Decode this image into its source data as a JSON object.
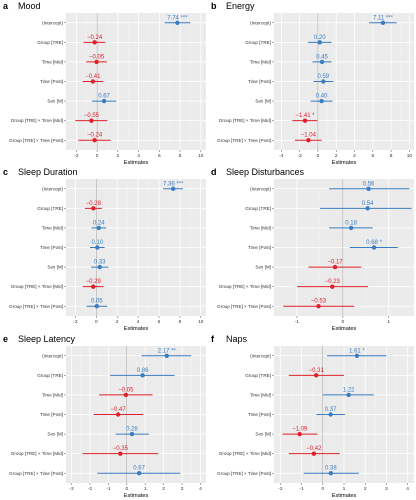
{
  "colors": {
    "positive": "#3a7dc2",
    "negative": "#e0202a",
    "panel_bg": "#ebebeb",
    "grid_major": "#ffffff",
    "grid_minor": "#f5f5f5"
  },
  "chart_data": [
    {
      "type": "scatter",
      "letter": "a",
      "title": "Mood",
      "xlabel": "Estimates",
      "xlim": [
        -3,
        10.5
      ],
      "xticks": [
        -2,
        0,
        2,
        4,
        6,
        8,
        10
      ],
      "categories": [
        "(Intercept)",
        "Group [TRE]",
        "Time [Mid]",
        "Time [Post]",
        "Sex [M]",
        "Group [TRE] × Time [Mid]",
        "Group [TRE] × Time [Post]"
      ],
      "estimates": [
        7.74,
        -0.24,
        -0.05,
        -0.41,
        0.67,
        -0.55,
        -0.24
      ],
      "labels": [
        "7.74 ***",
        "−0.24",
        "−0.05",
        "−0.41",
        "0.67",
        "−0.55",
        "−0.24"
      ],
      "ci_low": [
        6.5,
        -1.3,
        -1.05,
        -1.4,
        -0.5,
        -2.1,
        -1.8
      ],
      "ci_high": [
        9.0,
        0.8,
        0.95,
        0.6,
        1.85,
        1.0,
        1.3
      ]
    },
    {
      "type": "scatter",
      "letter": "b",
      "title": "Energy",
      "xlabel": "Estimates",
      "xlim": [
        -4.8,
        10.5
      ],
      "xticks": [
        -4,
        -2,
        0,
        2,
        4,
        6,
        8,
        10
      ],
      "categories": [
        "(Intercept)",
        "Group [TRE]",
        "Time [Mid]",
        "Time [Post]",
        "Sex [M]",
        "Group [TRE] × Time [Mid]",
        "Group [TRE] × Time [Post]"
      ],
      "estimates": [
        7.11,
        0.2,
        0.45,
        0.59,
        0.4,
        -1.41,
        -1.04
      ],
      "labels": [
        "7.11 ***",
        "0.20",
        "0.45",
        "0.59",
        "0.40",
        "−1.41 *",
        "−1.04"
      ],
      "ci_low": [
        5.6,
        -1.1,
        -0.6,
        -0.5,
        -0.8,
        -2.8,
        -2.5
      ],
      "ci_high": [
        8.6,
        1.5,
        1.5,
        1.7,
        1.6,
        -0.05,
        0.4
      ]
    },
    {
      "type": "scatter",
      "letter": "c",
      "title": "Sleep Duration",
      "xlabel": "Estimates",
      "xlim": [
        -2.9,
        10.5
      ],
      "xticks": [
        -2,
        0,
        2,
        4,
        6,
        8,
        10
      ],
      "categories": [
        "(Intercept)",
        "Group [TRE]",
        "Time [Mid]",
        "Time [Post]",
        "Sex [M]",
        "Group [TRE] × Time [Mid]",
        "Group [TRE] × Time [Post]"
      ],
      "estimates": [
        7.36,
        -0.28,
        0.24,
        0.1,
        0.33,
        -0.29,
        0.05
      ],
      "labels": [
        "7.36 ***",
        "−0.28",
        "0.24",
        "0.10",
        "0.33",
        "−0.29",
        "0.05"
      ],
      "ci_low": [
        6.4,
        -1.1,
        -0.45,
        -0.6,
        -0.5,
        -1.3,
        -0.95
      ],
      "ci_high": [
        8.3,
        0.55,
        0.95,
        0.8,
        1.15,
        0.7,
        1.05
      ]
    },
    {
      "type": "scatter",
      "letter": "d",
      "title": "Sleep Disturbances",
      "xlabel": "Estimates",
      "xlim": [
        -1.5,
        1.55
      ],
      "xticks": [
        -1,
        0,
        1
      ],
      "categories": [
        "(Intercept)",
        "Group [TRE]",
        "Time [Mid]",
        "Time [Post]",
        "Sex [M]",
        "Group [TRE] × Time [Mid]",
        "Group [TRE] × Time [Post]"
      ],
      "estimates": [
        0.56,
        0.54,
        0.18,
        0.68,
        -0.17,
        -0.23,
        -0.53
      ],
      "labels": [
        "0.56",
        "0.54",
        "0.18",
        "0.68 *",
        "−0.17",
        "−0.23",
        "−0.53"
      ],
      "ci_low": [
        -0.3,
        -0.5,
        -0.3,
        0.15,
        -0.75,
        -1.0,
        -1.3
      ],
      "ci_high": [
        1.45,
        1.5,
        0.65,
        1.2,
        0.4,
        0.55,
        0.25
      ]
    },
    {
      "type": "scatter",
      "letter": "e",
      "title": "Sleep Latency",
      "xlabel": "Estimates",
      "xlim": [
        -3.3,
        4.3
      ],
      "xticks": [
        -3,
        -2,
        -1,
        0,
        1,
        2,
        3,
        4
      ],
      "categories": [
        "(Intercept)",
        "Group [TRE]",
        "Time [Mid]",
        "Time [Post]",
        "Sex [M]",
        "Group [TRE] × Time [Mid]",
        "Group [TRE] × Time [Post]"
      ],
      "estimates": [
        2.17,
        0.86,
        -0.05,
        -0.47,
        0.28,
        -0.35,
        0.67
      ],
      "labels": [
        "2.17 **",
        "0.86",
        "−0.05",
        "−0.47",
        "0.28",
        "−0.35",
        "0.67"
      ],
      "ci_low": [
        0.8,
        -0.9,
        -1.5,
        -1.8,
        -0.6,
        -2.4,
        -1.6
      ],
      "ci_high": [
        3.5,
        2.6,
        1.4,
        0.9,
        1.2,
        1.7,
        2.9
      ]
    },
    {
      "type": "scatter",
      "letter": "f",
      "title": "Naps",
      "xlabel": "Estimates",
      "xlim": [
        -2.3,
        4.3
      ],
      "xticks": [
        -2,
        -1,
        0,
        1,
        2,
        3,
        4
      ],
      "categories": [
        "(Intercept)",
        "Group [TRE]",
        "Time [Mid]",
        "Time [Post]",
        "Sex [M]",
        "Group [TRE] × Time [Mid]",
        "Group [TRE] × Time [Post]"
      ],
      "estimates": [
        1.61,
        -0.31,
        1.22,
        0.37,
        -1.09,
        -0.42,
        0.38
      ],
      "labels": [
        "1.61 *",
        "−0.31",
        "1.22",
        "0.37",
        "−1.09",
        "−0.42",
        "0.38"
      ],
      "ci_low": [
        0.2,
        -1.6,
        0.0,
        -0.3,
        -1.9,
        -1.6,
        -0.9
      ],
      "ci_high": [
        3.0,
        1.0,
        2.4,
        1.05,
        -0.25,
        0.8,
        1.7
      ]
    }
  ]
}
